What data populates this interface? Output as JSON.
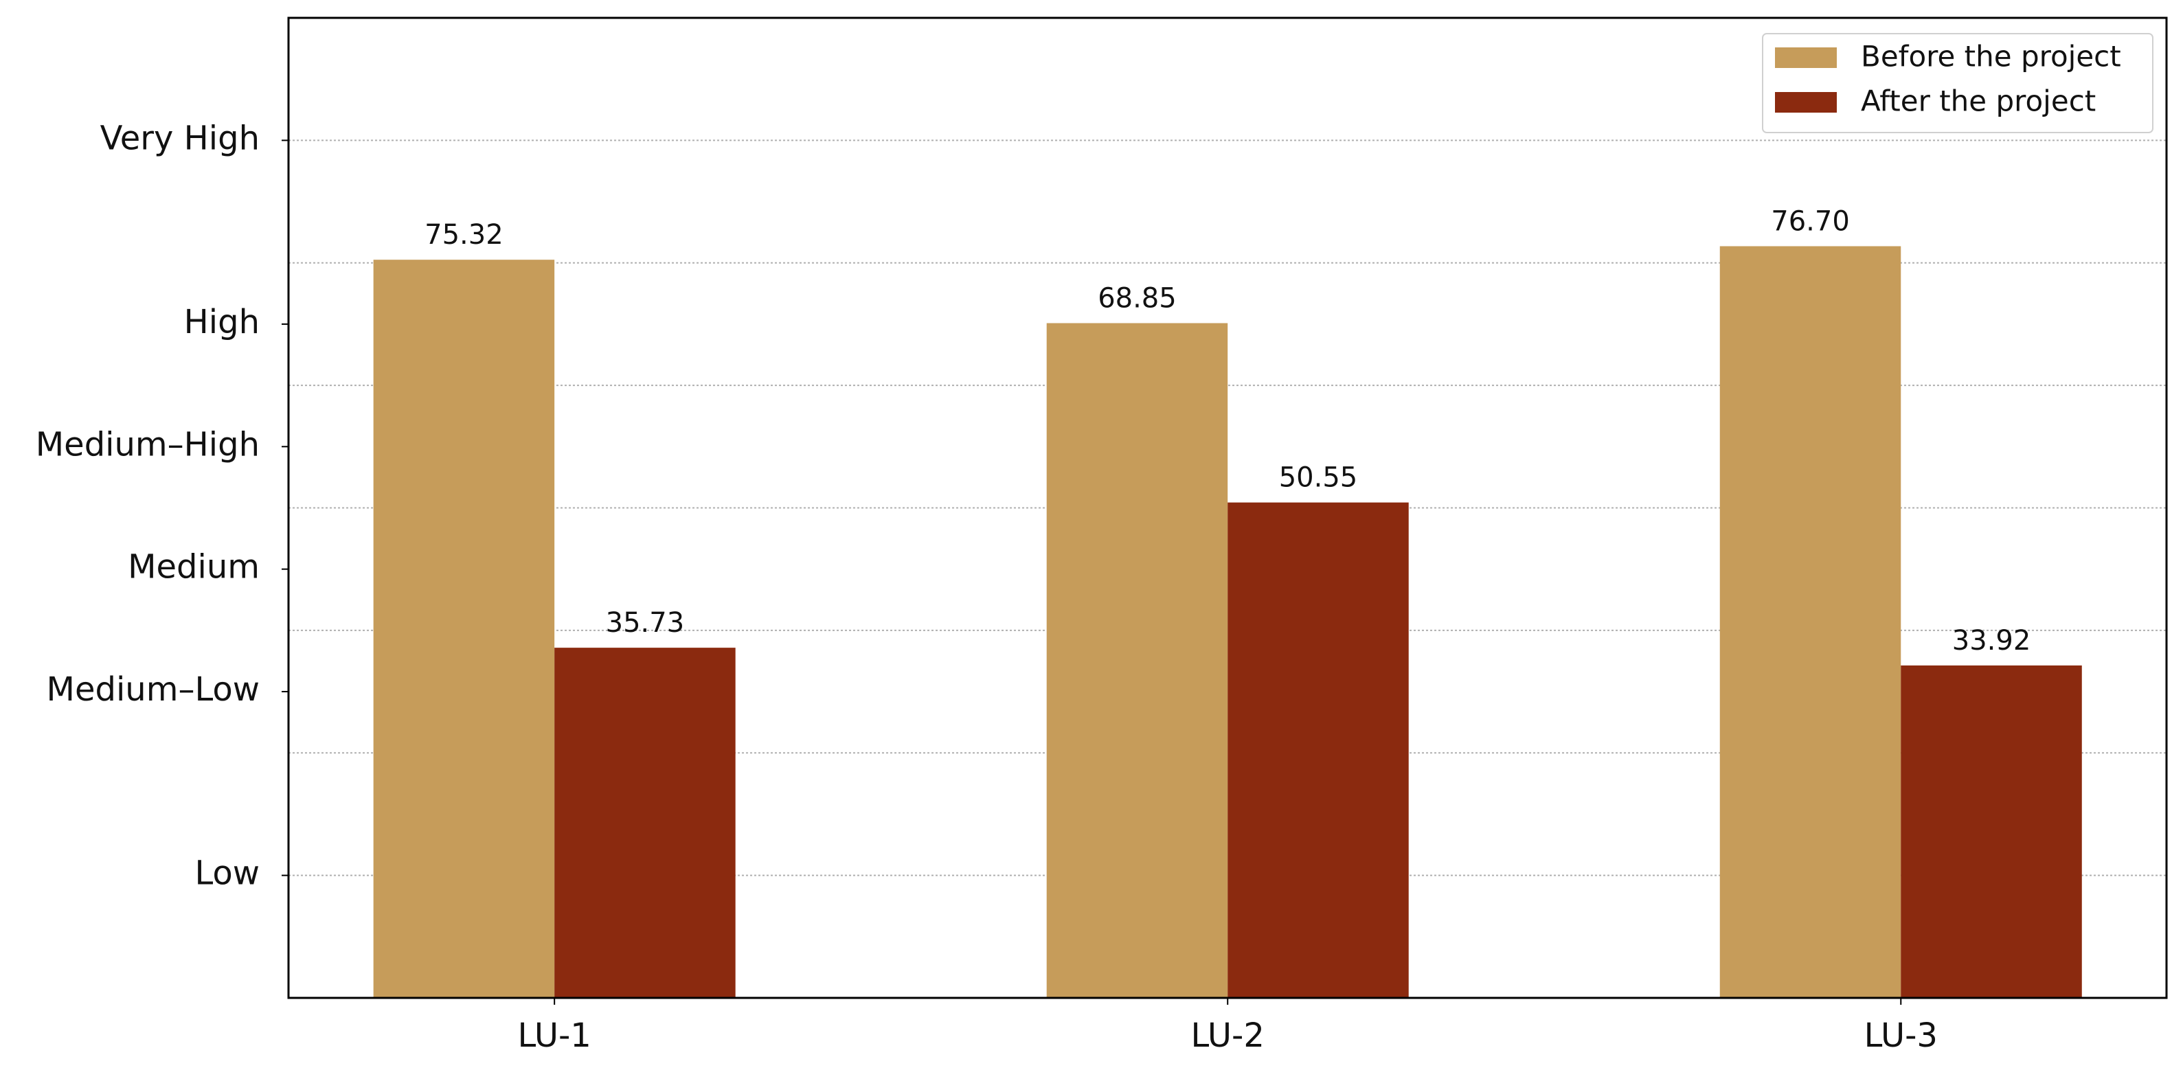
{
  "chart_data": {
    "type": "bar",
    "categories": [
      "LU-1",
      "LU-2",
      "LU-3"
    ],
    "series": [
      {
        "name": "Before the project",
        "color": "#c69c5a",
        "values": [
          75.32,
          68.85,
          76.7
        ],
        "value_labels": [
          "75.32",
          "68.85",
          "76.70"
        ]
      },
      {
        "name": "After the project",
        "color": "#8b2a0f",
        "values": [
          35.73,
          50.55,
          33.92
        ],
        "value_labels": [
          "35.73",
          "50.55",
          "33.92"
        ]
      }
    ],
    "ylim": [
      0,
      100
    ],
    "yticks": [
      {
        "value": 12.5,
        "label": "Low"
      },
      {
        "value": 31.25,
        "label": "Medium–Low"
      },
      {
        "value": 43.75,
        "label": "Medium"
      },
      {
        "value": 56.25,
        "label": "Medium–High"
      },
      {
        "value": 68.75,
        "label": "High"
      },
      {
        "value": 87.5,
        "label": "Very High"
      }
    ],
    "ygrid": [
      12.5,
      25,
      37.5,
      50,
      62.5,
      75,
      87.5
    ],
    "grid": true,
    "legend": "upper-right"
  }
}
